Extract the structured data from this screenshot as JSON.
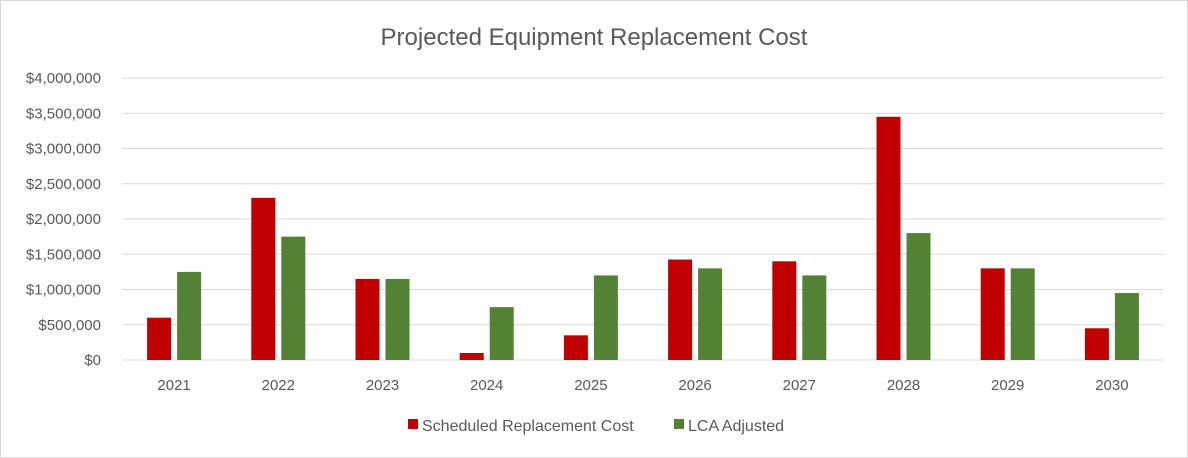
{
  "chart_data": {
    "type": "bar",
    "title": "Projected Equipment Replacement Cost",
    "xlabel": "",
    "ylabel": "",
    "categories": [
      "2021",
      "2022",
      "2023",
      "2024",
      "2025",
      "2026",
      "2027",
      "2028",
      "2029",
      "2030"
    ],
    "series": [
      {
        "name": "Scheduled Replacement Cost",
        "color": "#c00000",
        "values": [
          600000,
          2300000,
          1150000,
          100000,
          350000,
          1425000,
          1400000,
          3450000,
          1300000,
          450000
        ]
      },
      {
        "name": "LCA Adjusted",
        "color": "#548235",
        "values": [
          1250000,
          1750000,
          1150000,
          750000,
          1200000,
          1300000,
          1200000,
          1800000,
          1300000,
          950000
        ]
      }
    ],
    "ylim": [
      0,
      4000000
    ],
    "yticks": [
      0,
      500000,
      1000000,
      1500000,
      2000000,
      2500000,
      3000000,
      3500000,
      4000000
    ],
    "ytick_labels": [
      "$0",
      "$500,000",
      "$1,000,000",
      "$1,500,000",
      "$2,000,000",
      "$2,500,000",
      "$3,000,000",
      "$3,500,000",
      "$4,000,000"
    ],
    "grid": true,
    "legend_position": "bottom"
  }
}
